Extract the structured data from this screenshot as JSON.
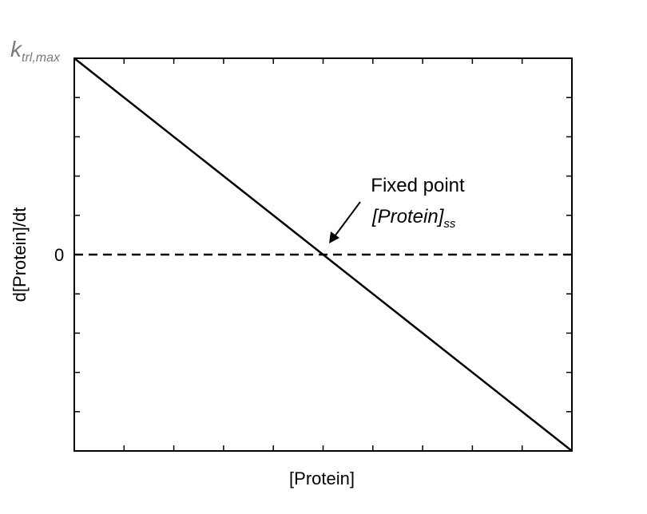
{
  "chart_data": {
    "type": "line",
    "xlabel": "[Protein]",
    "ylabel": "d[Protein]/dt",
    "y_top_label": {
      "k": "k",
      "subscript": "trl,max"
    },
    "zero_label": "0",
    "annotation": {
      "line1": "Fixed point",
      "line2_main": "[Protein]",
      "line2_sub": "ss"
    },
    "xlim": [
      0,
      10
    ],
    "ylim": [
      -1,
      1
    ],
    "x_ticks": [
      0,
      1,
      2,
      3,
      4,
      5,
      6,
      7,
      8,
      9,
      10
    ],
    "y_ticks": [
      -1,
      -0.8,
      -0.6,
      -0.4,
      -0.2,
      0,
      0.2,
      0.4,
      0.6,
      0.8,
      1
    ],
    "grid": false,
    "series": [
      {
        "style": "solid",
        "x": [
          0,
          5,
          10
        ],
        "y": [
          1,
          0,
          -1
        ]
      },
      {
        "style": "dashed",
        "x": [
          0,
          10
        ],
        "y": [
          0,
          0
        ]
      }
    ],
    "fixed_point": {
      "x": 5,
      "y": 0
    }
  }
}
